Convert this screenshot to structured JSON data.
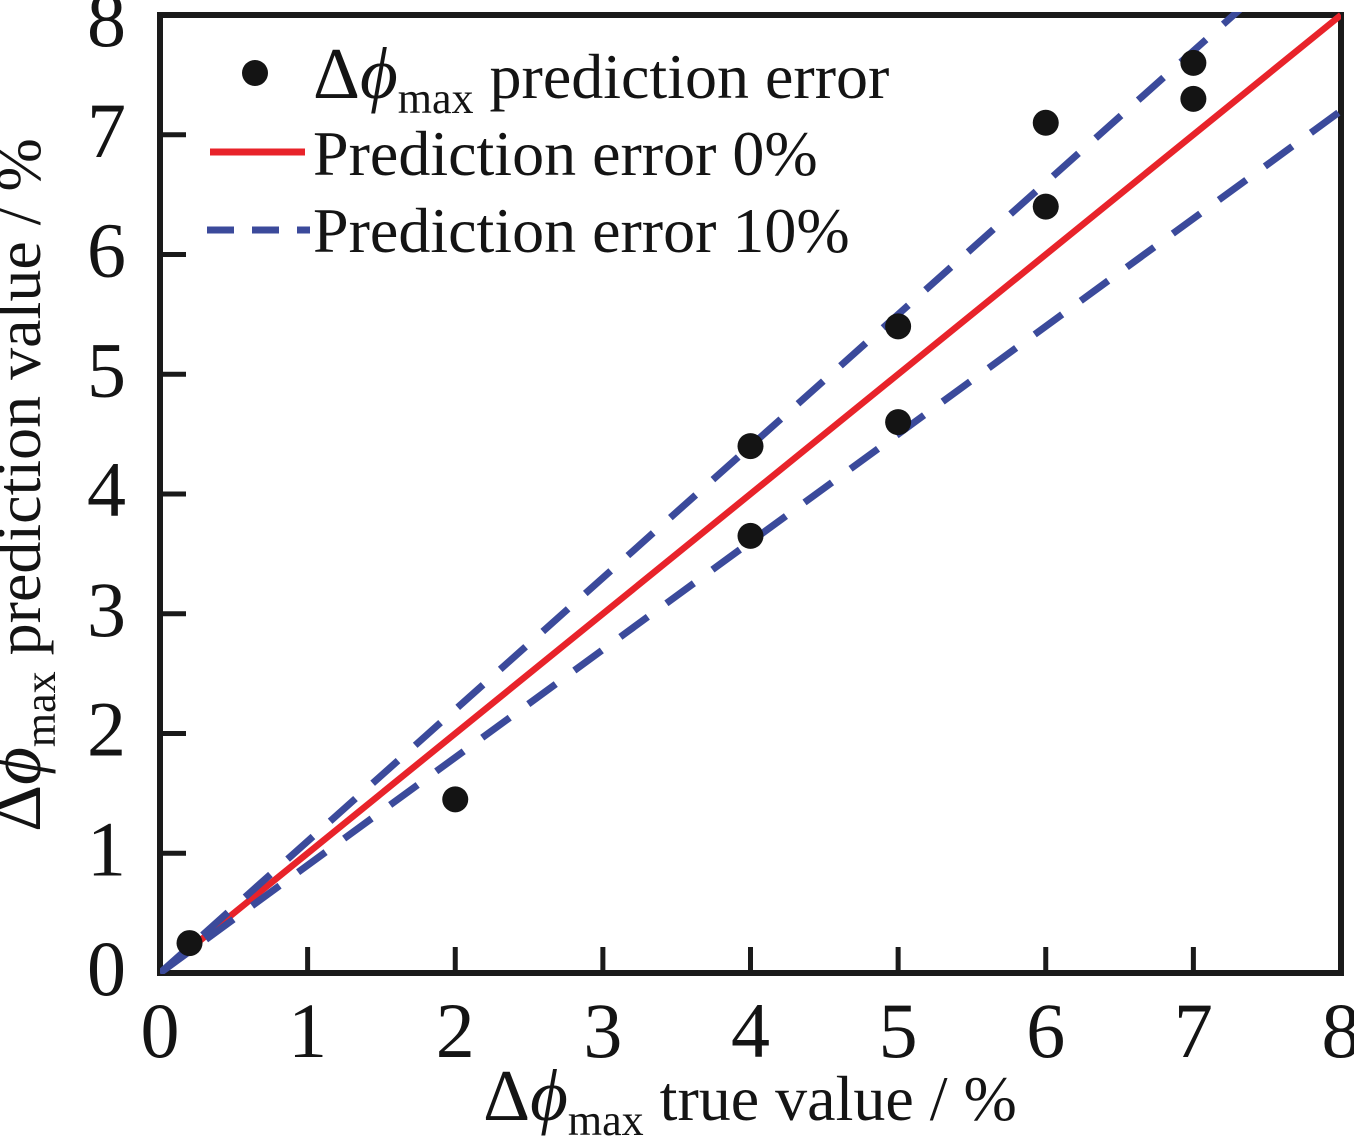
{
  "chart_data": {
    "type": "scatter",
    "title": "",
    "xlabel_rich": {
      "delta": "Δ",
      "phi": "ϕ",
      "sub": "max",
      "rest": " true value / %"
    },
    "ylabel_rich": {
      "delta": "Δ",
      "phi": "ϕ",
      "sub": "max",
      "rest": " prediction value / %"
    },
    "xlim": [
      0,
      8
    ],
    "ylim": [
      0,
      8
    ],
    "xticks": [
      0,
      1,
      2,
      3,
      4,
      5,
      6,
      7,
      8
    ],
    "yticks": [
      0,
      1,
      2,
      3,
      4,
      5,
      6,
      7,
      8
    ],
    "grid": false,
    "legend_position": "top-left",
    "series": [
      {
        "type": "scatter",
        "marker": "circle",
        "color": "#141414",
        "label_rich": {
          "delta": "Δ",
          "phi": "ϕ",
          "sub": "max",
          "rest": " prediction error"
        },
        "points": [
          [
            0.2,
            0.25
          ],
          [
            2,
            1.45
          ],
          [
            4,
            3.65
          ],
          [
            4,
            4.4
          ],
          [
            5,
            4.6
          ],
          [
            5,
            5.4
          ],
          [
            6,
            6.4
          ],
          [
            6,
            7.1
          ],
          [
            7,
            7.3
          ],
          [
            7,
            7.6
          ]
        ]
      },
      {
        "type": "line",
        "style": "solid",
        "color": "#e8232a",
        "name": "Prediction error 0%",
        "slope": 1,
        "intercept": 0
      },
      {
        "type": "line",
        "style": "dashed",
        "color": "#3b4a9b",
        "name": "Prediction error 10%",
        "slopes": [
          1.1,
          0.9
        ],
        "intercept": 0
      }
    ]
  }
}
